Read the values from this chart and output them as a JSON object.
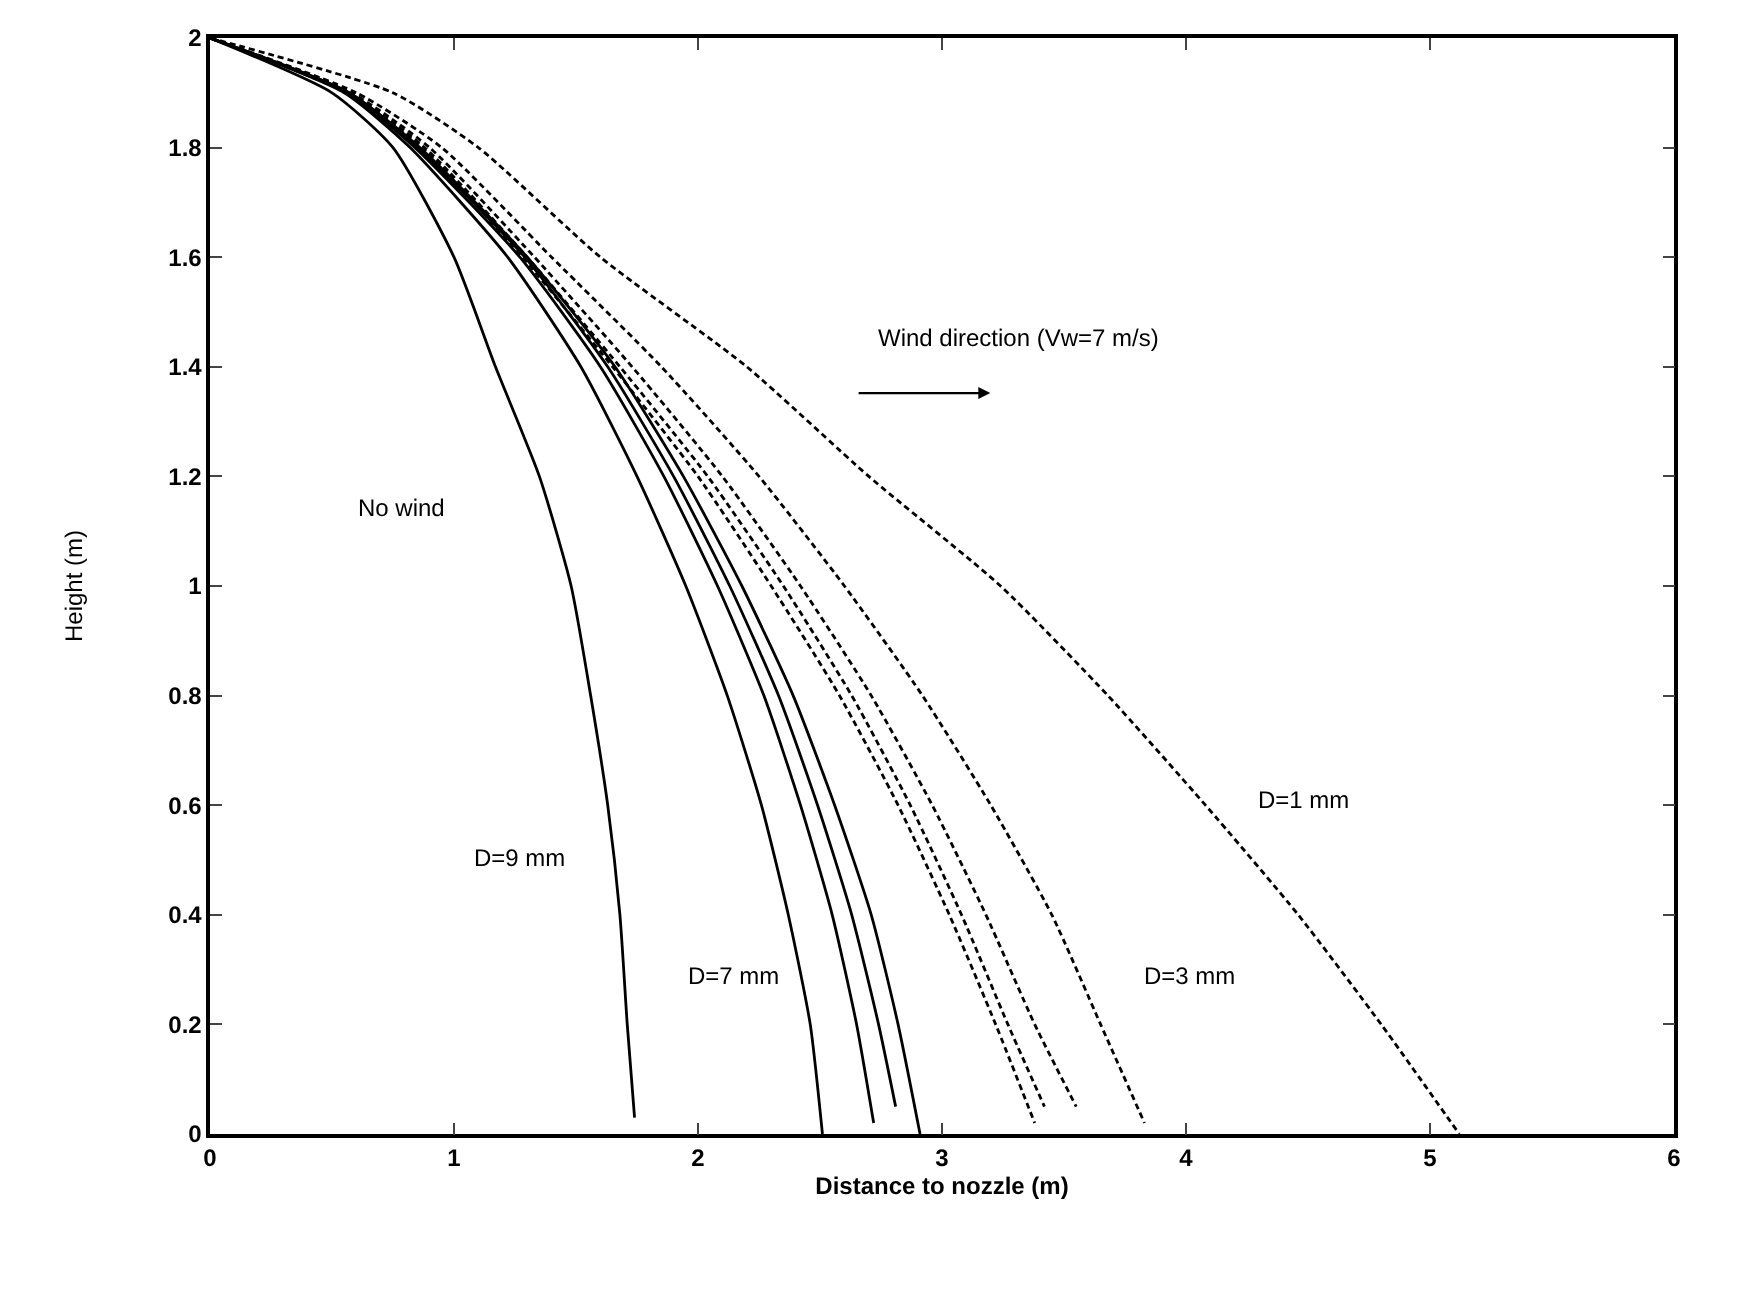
{
  "chart_data": {
    "type": "line",
    "xlabel": "Distance to nozzle (m)",
    "ylabel": "Height (m)",
    "xlim": [
      0,
      6
    ],
    "xticks": [
      0,
      1,
      2,
      3,
      4,
      5,
      6
    ],
    "ylim": [
      0,
      2
    ],
    "yticks": [
      0,
      {
        "value": 0.2,
        "label": "0.2"
      },
      {
        "value": 0.4,
        "label": "0.4"
      },
      {
        "value": 0.6,
        "label": "0.6"
      },
      {
        "value": 0.8,
        "label": "0.8"
      },
      1,
      {
        "value": 1.2,
        "label": "1.2"
      },
      {
        "value": 1.4,
        "label": "1.4"
      },
      {
        "value": 1.6,
        "label": "1.6"
      },
      {
        "value": 1.8,
        "label": "1.8"
      },
      2
    ],
    "grid": false,
    "marker": "none",
    "series": [
      {
        "color": "#000000",
        "line_style": "solid",
        "x": [
          0,
          0.5,
          0.75,
          1.0,
          1.17,
          1.35,
          1.48,
          1.56,
          1.63,
          1.68,
          1.71,
          1.74
        ],
        "values": [
          2,
          1.9,
          1.8,
          1.6,
          1.4,
          1.2,
          1.0,
          0.8,
          0.6,
          0.4,
          0.2,
          0.03
        ]
      },
      {
        "color": "#000000",
        "line_style": "solid",
        "x": [
          0,
          0.55,
          0.82,
          1.22,
          1.52,
          1.75,
          1.95,
          2.12,
          2.26,
          2.37,
          2.46,
          2.51
        ],
        "values": [
          2,
          1.9,
          1.8,
          1.6,
          1.4,
          1.2,
          1.0,
          0.8,
          0.6,
          0.4,
          0.2,
          0
        ]
      },
      {
        "color": "#000000",
        "line_style": "solid",
        "x": [
          0,
          0.56,
          0.84,
          1.27,
          1.6,
          1.86,
          2.08,
          2.27,
          2.42,
          2.55,
          2.65,
          2.72
        ],
        "values": [
          2,
          1.9,
          1.8,
          1.6,
          1.4,
          1.2,
          1.0,
          0.8,
          0.6,
          0.4,
          0.2,
          0.02
        ]
      },
      {
        "color": "#000000",
        "line_style": "solid",
        "x": [
          0,
          0.57,
          0.85,
          1.29,
          1.63,
          1.9,
          2.13,
          2.33,
          2.49,
          2.63,
          2.74,
          2.81
        ],
        "values": [
          2,
          1.9,
          1.8,
          1.6,
          1.4,
          1.2,
          1.0,
          0.8,
          0.6,
          0.4,
          0.2,
          0.05
        ]
      },
      {
        "color": "#000000",
        "line_style": "solid",
        "x": [
          0,
          0.57,
          0.86,
          1.3,
          1.66,
          1.94,
          2.18,
          2.39,
          2.56,
          2.71,
          2.82,
          2.91
        ],
        "values": [
          2,
          1.9,
          1.8,
          1.6,
          1.4,
          1.2,
          1.0,
          0.8,
          0.6,
          0.4,
          0.2,
          0
        ]
      },
      {
        "color": "#000000",
        "line_style": "dashed",
        "x": [
          0,
          0.56,
          0.87,
          1.28,
          1.65,
          2.0,
          2.3,
          2.58,
          2.82,
          3.03,
          3.22,
          3.38
        ],
        "values": [
          2,
          1.9,
          1.8,
          1.6,
          1.4,
          1.2,
          1.0,
          0.8,
          0.6,
          0.4,
          0.2,
          0.02
        ]
      },
      {
        "color": "#000000",
        "line_style": "dashed",
        "x": [
          0,
          0.57,
          0.88,
          1.3,
          1.68,
          2.04,
          2.35,
          2.63,
          2.87,
          3.08,
          3.27,
          3.42
        ],
        "values": [
          2,
          1.9,
          1.8,
          1.6,
          1.4,
          1.2,
          1.0,
          0.8,
          0.6,
          0.4,
          0.2,
          0.05
        ]
      },
      {
        "color": "#000000",
        "line_style": "dashed",
        "x": [
          0,
          0.58,
          0.9,
          1.33,
          1.73,
          2.1,
          2.42,
          2.71,
          2.96,
          3.18,
          3.38,
          3.55
        ],
        "values": [
          2,
          1.9,
          1.8,
          1.6,
          1.4,
          1.2,
          1.0,
          0.8,
          0.6,
          0.4,
          0.2,
          0.05
        ]
      },
      {
        "color": "#000000",
        "line_style": "dashed",
        "x": [
          0,
          0.6,
          0.95,
          1.4,
          1.85,
          2.25,
          2.6,
          2.92,
          3.2,
          3.45,
          3.65,
          3.83
        ],
        "values": [
          2,
          1.9,
          1.8,
          1.6,
          1.4,
          1.2,
          1.0,
          0.8,
          0.6,
          0.4,
          0.2,
          0.02
        ]
      },
      {
        "color": "#000000",
        "line_style": "dashed",
        "x": [
          0,
          0.75,
          1.1,
          1.6,
          2.2,
          2.7,
          3.24,
          3.68,
          4.08,
          4.46,
          4.8,
          5.12
        ],
        "values": [
          2,
          1.9,
          1.8,
          1.6,
          1.4,
          1.2,
          1.0,
          0.8,
          0.6,
          0.4,
          0.2,
          0
        ]
      }
    ],
    "annotations": [
      "No wind",
      "Wind direction (Vw=7 m/s)",
      "D=9 mm",
      "D=7 mm",
      "D=3 mm",
      "D=1 mm"
    ]
  }
}
